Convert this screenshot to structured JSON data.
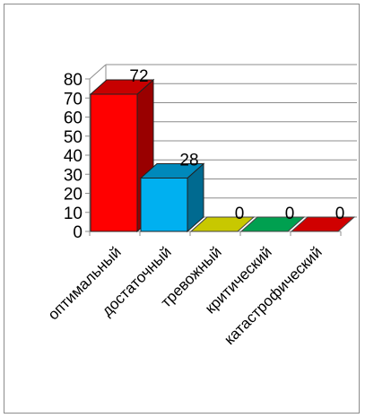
{
  "chart_data": {
    "type": "bar",
    "style": "3d",
    "categories": [
      "оптимальный",
      "достаточный",
      "тревожный",
      "критический",
      "катастрофический"
    ],
    "values": [
      72,
      28,
      0,
      0,
      0
    ],
    "data_labels": [
      "72",
      "28",
      "0",
      "0",
      "0"
    ],
    "colors": [
      "#ff0000",
      "#00b0f0",
      "#c8c800",
      "#00a050",
      "#d00000"
    ],
    "ylim": [
      0,
      80
    ],
    "yticks": [
      "0",
      "10",
      "20",
      "30",
      "40",
      "50",
      "60",
      "70",
      "80"
    ],
    "grid": true,
    "legend": false,
    "title": "",
    "xlabel": "",
    "ylabel": ""
  }
}
